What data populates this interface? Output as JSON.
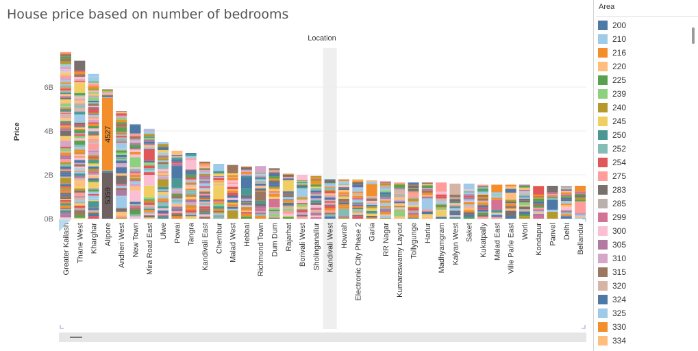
{
  "chart_data": {
    "type": "bar",
    "title": "House price based on number of bedrooms",
    "xlabel": "Location",
    "ylabel": "Price",
    "y_ticks": [
      "0B",
      "2B",
      "4B",
      "6B"
    ],
    "ylim": [
      0,
      7.8
    ],
    "stacked": true,
    "grid": true,
    "legend_placement": "right",
    "categories": [
      "Greater Kailash",
      "Thane West",
      "Kharghar",
      "Alipore",
      "Andheri West",
      "New Town",
      "Mira Road East",
      "Ulwe",
      "Powai",
      "Tangra",
      "Kandivali East",
      "Chembur",
      "Malad West",
      "Hebbal",
      "Richmond Town",
      "Dum Dum",
      "Rajarhat",
      "Borivali West",
      "Sholinganallur",
      "Kandivali West",
      "Howrah",
      "Electronic City Phase 2",
      "Garia",
      "RR Nagar",
      "Kumaraswamy Layout",
      "Tollygunge",
      "Harlur",
      "Madhyamgram",
      "Kalyan West",
      "Saket",
      "Kukatpally",
      "Malad East",
      "Ville Parle East",
      "Worli",
      "Kondapur",
      "Panvel",
      "Delhi",
      "Bellandur",
      ""
    ],
    "values": [
      7.6,
      7.2,
      6.6,
      5.9,
      4.9,
      4.3,
      4.1,
      3.5,
      3.1,
      3.0,
      2.6,
      2.5,
      2.45,
      2.4,
      2.4,
      2.3,
      2.05,
      2.0,
      1.95,
      1.8,
      1.8,
      1.8,
      1.75,
      1.7,
      1.65,
      1.65,
      1.65,
      1.65,
      1.6,
      1.6,
      1.55,
      1.55,
      1.55,
      1.55,
      1.5,
      1.5,
      1.5,
      1.5,
      1.5
    ],
    "highlight": {
      "category": "Alipore",
      "segments": [
        {
          "label": "5359",
          "from": 0.0,
          "to": 2.1,
          "color": "#6f6161"
        },
        {
          "label": "4527",
          "from": 2.2,
          "to": 5.5,
          "color": "#f28e2b"
        }
      ]
    },
    "selected_category": "Kandivali West"
  },
  "legend": {
    "title": "Area",
    "items": [
      {
        "label": "200",
        "color": "#4e79a7"
      },
      {
        "label": "210",
        "color": "#a0cbe8"
      },
      {
        "label": "216",
        "color": "#f28e2b"
      },
      {
        "label": "220",
        "color": "#ffbe7d"
      },
      {
        "label": "225",
        "color": "#59a14f"
      },
      {
        "label": "239",
        "color": "#8cd17d"
      },
      {
        "label": "240",
        "color": "#b6992d"
      },
      {
        "label": "245",
        "color": "#f1ce63"
      },
      {
        "label": "250",
        "color": "#499894"
      },
      {
        "label": "252",
        "color": "#86bcb6"
      },
      {
        "label": "254",
        "color": "#e15759"
      },
      {
        "label": "275",
        "color": "#ff9d9a"
      },
      {
        "label": "283",
        "color": "#79706e"
      },
      {
        "label": "285",
        "color": "#bab0ac"
      },
      {
        "label": "299",
        "color": "#d37295"
      },
      {
        "label": "300",
        "color": "#fabfd2"
      },
      {
        "label": "305",
        "color": "#b07aa1"
      },
      {
        "label": "310",
        "color": "#d4a6c8"
      },
      {
        "label": "315",
        "color": "#9d7660"
      },
      {
        "label": "320",
        "color": "#d7b5a6"
      },
      {
        "label": "324",
        "color": "#4e79a7"
      },
      {
        "label": "325",
        "color": "#a0cbe8"
      },
      {
        "label": "330",
        "color": "#f28e2b"
      },
      {
        "label": "334",
        "color": "#ffbe7d"
      }
    ]
  }
}
